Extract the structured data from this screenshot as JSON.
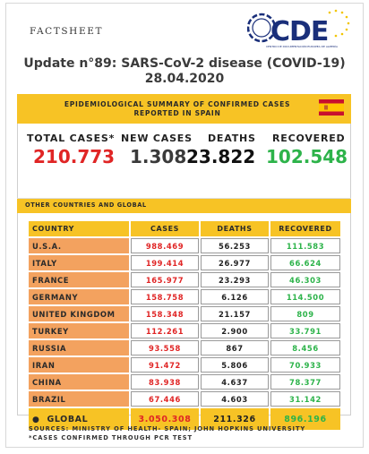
{
  "header": {
    "factsheet_label": "FACTSHEET",
    "logo_text": "CDE",
    "logo_subtitle": "CENTRO DE DOCUMENTACIÓN EUROPEA DE ALMERÍA"
  },
  "title": {
    "line1": "Update n°89: SARS-CoV-2 disease (COVID-19)",
    "line2": "28.04.2020"
  },
  "spain": {
    "banner_line1": "EPIDEMIOLOGICAL SUMMARY OF CONFIRMED CASES",
    "banner_line2": "REPORTED IN SPAIN",
    "labels": {
      "total_cases": "TOTAL CASES*",
      "new_cases": "NEW CASES",
      "deaths": "DEATHS",
      "recovered": "RECOVERED"
    },
    "values": {
      "total_cases": "210.773",
      "new_cases": "1.308",
      "deaths": "23.822",
      "recovered": "102.548"
    }
  },
  "global_section": {
    "heading": "OTHER COUNTRIES AND GLOBAL",
    "columns": {
      "country": "COUNTRY",
      "cases": "CASES",
      "deaths": "DEATHS",
      "recovered": "RECOVERED"
    },
    "rows": [
      {
        "country": "U.S.A.",
        "cases": "988.469",
        "deaths": "56.253",
        "recovered": "111.583"
      },
      {
        "country": "ITALY",
        "cases": "199.414",
        "deaths": "26.977",
        "recovered": "66.624"
      },
      {
        "country": "FRANCE",
        "cases": "165.977",
        "deaths": "23.293",
        "recovered": "46.303"
      },
      {
        "country": "GERMANY",
        "cases": "158.758",
        "deaths": "6.126",
        "recovered": "114.500"
      },
      {
        "country": "UNITED KINGDOM",
        "cases": "158.348",
        "deaths": "21.157",
        "recovered": "809"
      },
      {
        "country": "TURKEY",
        "cases": "112.261",
        "deaths": "2.900",
        "recovered": "33.791"
      },
      {
        "country": "RUSSIA",
        "cases": "93.558",
        "deaths": "867",
        "recovered": "8.456"
      },
      {
        "country": "IRAN",
        "cases": "91.472",
        "deaths": "5.806",
        "recovered": "70.933"
      },
      {
        "country": "CHINA",
        "cases": "83.938",
        "deaths": "4.637",
        "recovered": "78.377"
      },
      {
        "country": "BRAZIL",
        "cases": "67.446",
        "deaths": "4.603",
        "recovered": "31.142"
      }
    ],
    "global": {
      "label": "GLOBAL",
      "cases": "3.050.308",
      "deaths": "211.326",
      "recovered": "896.196"
    }
  },
  "footer": {
    "sources": "SOURCES: MINISTRY OF HEALTH- SPAIN; JOHN HOPKINS UNIVERSITY",
    "note": "*CASES CONFIRMED THROUGH PCR TEST"
  },
  "colors": {
    "banner": "#f7c325",
    "country_cell": "#f3a25f",
    "cases_red": "#e02525",
    "recovered_green": "#2db34a",
    "logo_blue": "#1a2f7a"
  }
}
